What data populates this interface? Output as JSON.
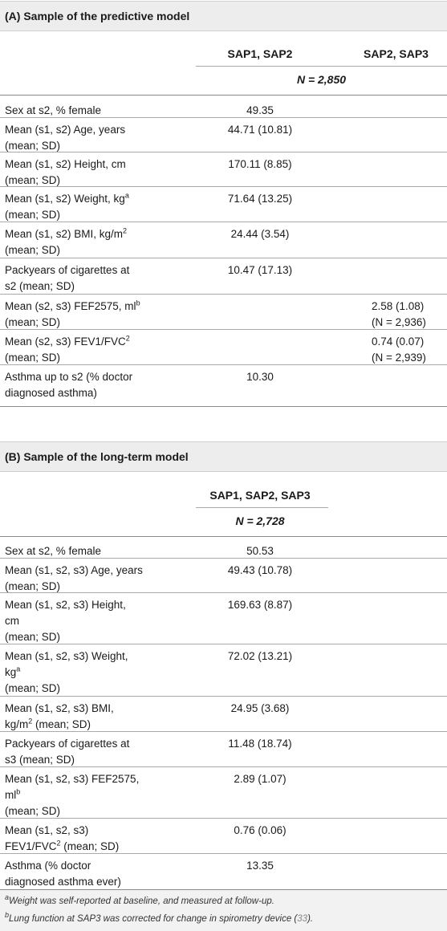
{
  "sectionA": {
    "title": "(A) Sample of the predictive model",
    "col1": "SAP1, SAP2",
    "col2": "SAP2, SAP3",
    "n": "N = 2,850",
    "rows": [
      {
        "l1": "Sex at s2, % female",
        "l2": "",
        "v1": "49.35",
        "v2": "",
        "v2b": ""
      },
      {
        "l1": "Mean (s1, s2) Age, years",
        "l2": "(mean; SD)",
        "v1": "44.71 (10.81)",
        "v2": "",
        "v2b": ""
      },
      {
        "l1": "Mean (s1, s2) Height, cm",
        "l2": "(mean; SD)",
        "v1": "170.11 (8.85)",
        "v2": "",
        "v2b": ""
      },
      {
        "l1": "Mean (s1, s2) Weight, kg",
        "sup": "a",
        "l2": "(mean; SD)",
        "v1": "71.64 (13.25)",
        "v2": "",
        "v2b": ""
      },
      {
        "l1": "Mean (s1, s2) BMI, kg/m",
        "sup": "2",
        "l2": "(mean; SD)",
        "v1": "24.44 (3.54)",
        "v2": "",
        "v2b": ""
      },
      {
        "l1": "Packyears of cigarettes at",
        "l2": "s2 (mean; SD)",
        "v1": "10.47 (17.13)",
        "v2": "",
        "v2b": ""
      },
      {
        "l1": "Mean (s2, s3) FEF2575, ml",
        "sup": "b",
        "l2": "(mean; SD)",
        "v1": "",
        "v2": "2.58 (1.08)",
        "v2b": "(N = 2,936)"
      },
      {
        "l1": "Mean (s2, s3) FEV1/FVC",
        "sup": "2",
        "l2": "(mean; SD)",
        "v1": "",
        "v2": "0.74 (0.07)",
        "v2b": "(N = 2,939)"
      },
      {
        "l1": "Asthma up to s2 (% doctor",
        "l2": "diagnosed asthma)",
        "v1": "10.30",
        "v2": "",
        "v2b": ""
      }
    ]
  },
  "sectionB": {
    "title": "(B) Sample of the long-term model",
    "col1": "SAP1, SAP2, SAP3",
    "n": "N = 2,728",
    "rows": [
      {
        "lines": [
          "Sex at s2, % female"
        ],
        "v1": "50.53"
      },
      {
        "lines": [
          "Mean (s1, s2, s3) Age, years",
          "(mean; SD)"
        ],
        "v1": "49.43 (10.78)"
      },
      {
        "lines": [
          "Mean (s1, s2, s3) Height,",
          "cm",
          "(mean; SD)"
        ],
        "v1": "169.63 (8.87)"
      },
      {
        "lines": [
          "Mean (s1, s2, s3) Weight,",
          "kg",
          "(mean; SD)"
        ],
        "supLine": 1,
        "sup": "a",
        "v1": "72.02 (13.21)"
      },
      {
        "lines": [
          "Mean (s1, s2, s3) BMI,",
          "kg/m",
          " (mean; SD)"
        ],
        "supLine": 1,
        "sup": "2",
        "inline": true,
        "v1": "24.95 (3.68)"
      },
      {
        "lines": [
          "Packyears of cigarettes at",
          "s3 (mean; SD)"
        ],
        "v1": "11.48 (18.74)"
      },
      {
        "lines": [
          "Mean (s1, s2, s3) FEF2575,",
          "ml",
          "(mean; SD)"
        ],
        "supLine": 1,
        "sup": "b",
        "v1": "2.89 (1.07)"
      },
      {
        "lines": [
          "Mean (s1, s2, s3)",
          "FEV1/FVC",
          " (mean; SD)"
        ],
        "supLine": 1,
        "sup": "2",
        "inline": true,
        "v1": "0.76 (0.06)"
      },
      {
        "lines": [
          "Asthma (% doctor",
          "diagnosed asthma ever)"
        ],
        "v1": "13.35"
      }
    ]
  },
  "footnotes": {
    "a_mark": "a",
    "a_text": "Weight was self-reported at baseline, and measured at follow-up.",
    "b_mark": "b",
    "b_text": "Lung function at SAP3 was corrected for change in spirometry device (",
    "b_ref": "33",
    "b_end": ")."
  }
}
